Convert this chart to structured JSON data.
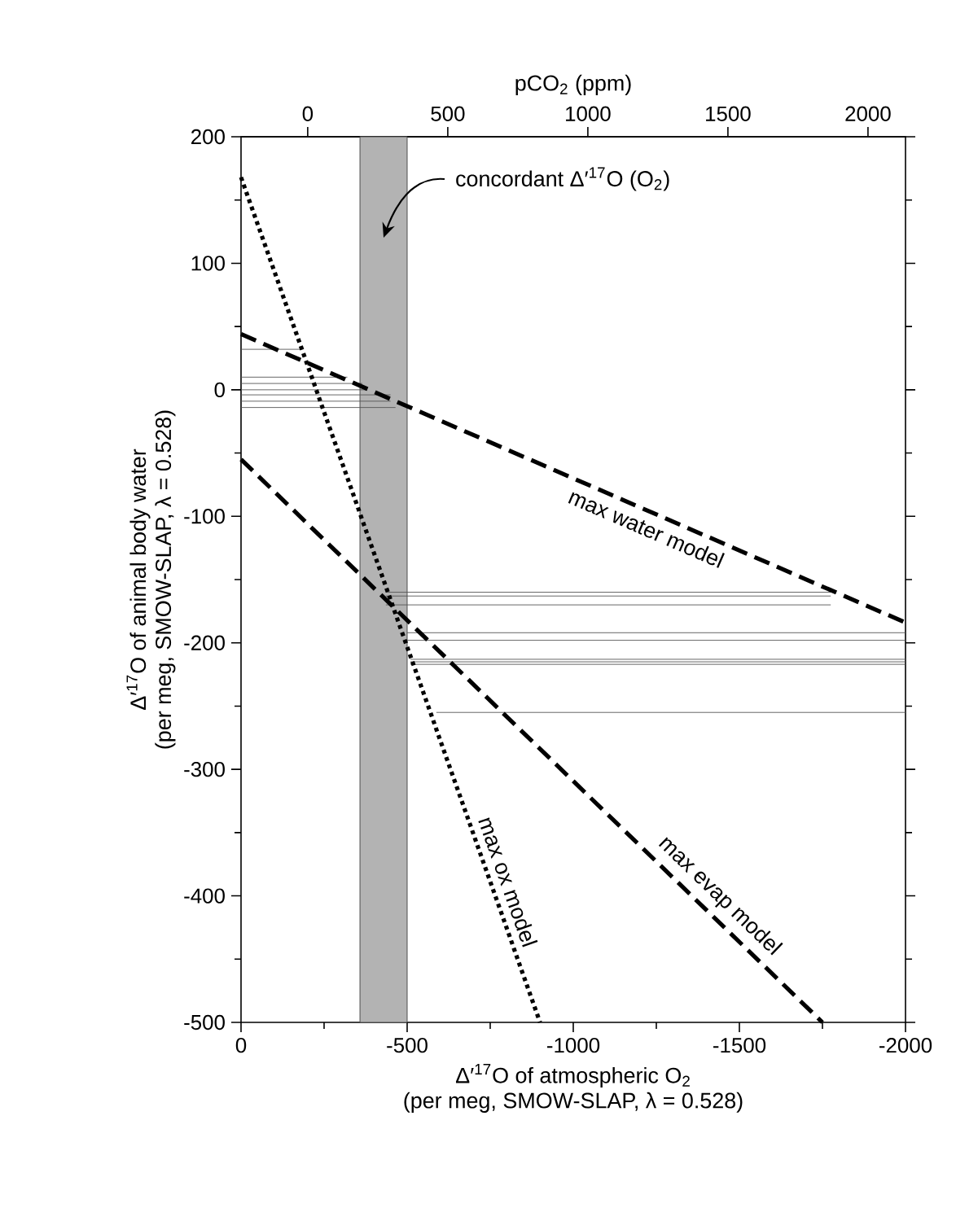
{
  "chart_data": {
    "type": "line",
    "xlabel": "Δ′$^{17}$O of atmospheric O$_{2}$\n(per meg, SMOW-SLAP, λ = 0.528)",
    "ylabel": "Δ′$^{17}$O of animal body water\n(per meg, SMOW-SLAP, λ = 0.528)",
    "x2label": "pCO$_{2}$ (ppm)",
    "xlim": [
      0,
      -2000
    ],
    "xticks": [
      0,
      -500,
      -1000,
      -1500,
      -2000
    ],
    "ylim": [
      -500,
      200
    ],
    "yticks": [
      -500,
      -400,
      -300,
      -200,
      -100,
      0,
      100,
      200
    ],
    "x2lim": [
      -238,
      2134
    ],
    "x2ticks": [
      0,
      500,
      1000,
      1500,
      2000
    ],
    "bands": [
      {
        "axis": "x",
        "from": -358,
        "to": -500,
        "label": "concordant Δ′$^{17}$O (O$_{2}$)",
        "color": "#b3b3b3"
      }
    ],
    "series": [
      {
        "x": [
          0,
          -180
        ],
        "values": [
          32,
          32
        ],
        "color": "#555555",
        "line_style": "solid"
      },
      {
        "x": [
          0,
          -320
        ],
        "values": [
          10,
          10
        ],
        "color": "#555555",
        "line_style": "solid"
      },
      {
        "x": [
          0,
          -365
        ],
        "values": [
          5,
          5
        ],
        "color": "#555555",
        "line_style": "solid"
      },
      {
        "x": [
          0,
          -380
        ],
        "values": [
          0,
          0
        ],
        "color": "#555555",
        "line_style": "solid"
      },
      {
        "x": [
          0,
          -450
        ],
        "values": [
          -4,
          -4
        ],
        "color": "#555555",
        "line_style": "solid"
      },
      {
        "x": [
          0,
          -450
        ],
        "values": [
          -9,
          -9
        ],
        "color": "#555555",
        "line_style": "solid"
      },
      {
        "x": [
          0,
          -465
        ],
        "values": [
          -14,
          -14
        ],
        "color": "#555555",
        "line_style": "solid"
      },
      {
        "x": [
          -436,
          -1775
        ],
        "values": [
          -160,
          -160
        ],
        "color": "#555555",
        "line_style": "solid"
      },
      {
        "x": [
          -436,
          -1775
        ],
        "values": [
          -163,
          -163
        ],
        "color": "#555555",
        "line_style": "solid"
      },
      {
        "x": [
          -436,
          -1775
        ],
        "values": [
          -170,
          -170
        ],
        "color": "#555555",
        "line_style": "solid"
      },
      {
        "x": [
          -500,
          -2000
        ],
        "values": [
          -192,
          -192
        ],
        "color": "#555555",
        "line_style": "solid"
      },
      {
        "x": [
          -500,
          -2000
        ],
        "values": [
          -198,
          -198
        ],
        "color": "#555555",
        "line_style": "solid"
      },
      {
        "x": [
          -510,
          -2000
        ],
        "values": [
          -213,
          -213
        ],
        "color": "#555555",
        "line_style": "solid"
      },
      {
        "x": [
          -510,
          -2000
        ],
        "values": [
          -215,
          -215
        ],
        "color": "#555555",
        "line_style": "solid"
      },
      {
        "x": [
          -510,
          -2000
        ],
        "values": [
          -217,
          -217
        ],
        "color": "#555555",
        "line_style": "solid"
      },
      {
        "x": [
          -588,
          -2000
        ],
        "values": [
          -255,
          -255
        ],
        "color": "#555555",
        "line_style": "solid"
      },
      {
        "name": "max water model",
        "x": [
          0,
          -2000
        ],
        "values": [
          44,
          -184
        ],
        "color": "#000000",
        "line_style": "dashed"
      },
      {
        "name": "max evap model",
        "x": [
          0,
          -1750
        ],
        "values": [
          -55,
          -500
        ],
        "color": "#000000",
        "line_style": "dashed"
      },
      {
        "name": "max ox model",
        "x": [
          0,
          -900
        ],
        "values": [
          168,
          -500
        ],
        "color": "#000000",
        "line_style": "dotted"
      }
    ]
  }
}
